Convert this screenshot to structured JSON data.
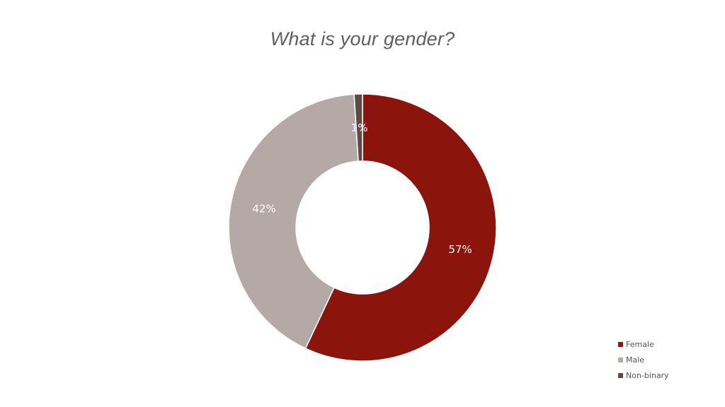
{
  "chart_data": {
    "type": "pie",
    "variant": "donut",
    "title": "What is your gender?",
    "slices": [
      {
        "label": "Female",
        "value": 57,
        "display": "57%",
        "color": "#8b140d"
      },
      {
        "label": "Male",
        "value": 42,
        "display": "42%",
        "color": "#b5a9a7"
      },
      {
        "label": "Non-binary",
        "value": 1,
        "display": "1%",
        "color": "#5c4a47"
      }
    ],
    "legend_position": "bottom-right"
  }
}
